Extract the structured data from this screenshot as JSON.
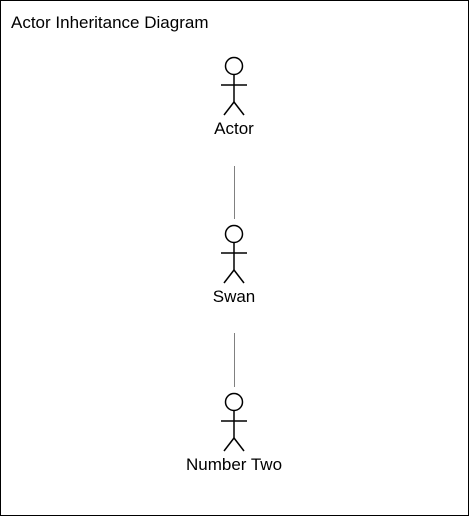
{
  "diagram": {
    "title": "Actor Inheritance Diagram",
    "actors": [
      {
        "id": "actor",
        "label": "Actor"
      },
      {
        "id": "swan",
        "label": "Swan"
      },
      {
        "id": "number-two",
        "label": "Number Two"
      }
    ],
    "generalizations": [
      {
        "from": "Swan",
        "to": "Actor"
      },
      {
        "from": "Number Two",
        "to": "Swan"
      }
    ],
    "colors": {
      "line": "#000000",
      "connector": "#808080",
      "background": "#ffffff"
    }
  }
}
